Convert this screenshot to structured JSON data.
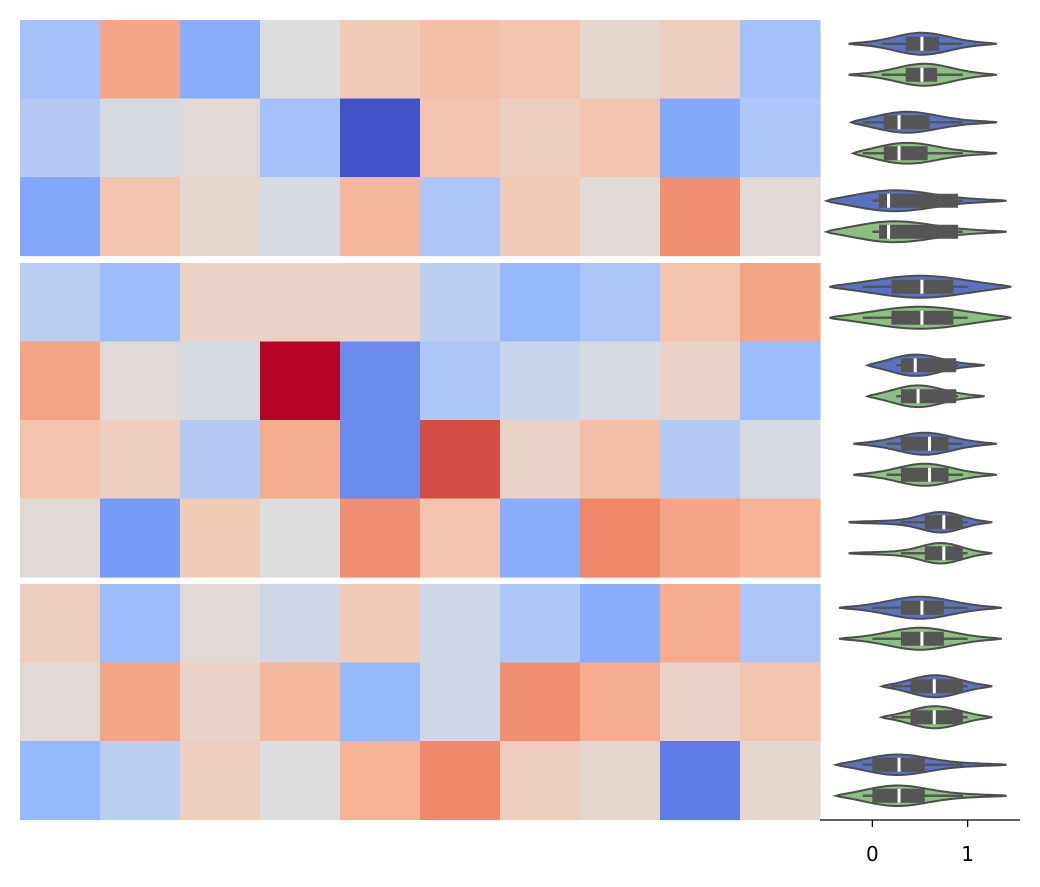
{
  "chart_data": [
    {
      "type": "heatmap",
      "title": "",
      "xlabel": "",
      "ylabel": "",
      "colormap": "coolwarm",
      "value_range": [
        -2.5,
        2.5
      ],
      "row_groups": [
        3,
        4,
        3
      ],
      "columns": 10,
      "values": [
        [
          -0.8,
          1.1,
          -1.2,
          0.0,
          0.5,
          0.7,
          0.6,
          0.2,
          0.4,
          -0.8
        ],
        [
          -0.6,
          -0.1,
          0.1,
          -0.8,
          -2.4,
          0.6,
          0.4,
          0.6,
          -1.3,
          -0.7
        ],
        [
          -1.3,
          0.6,
          0.2,
          -0.1,
          0.8,
          -0.7,
          0.5,
          0.1,
          1.4,
          0.1
        ],
        [
          -0.5,
          -0.9,
          0.3,
          0.3,
          0.3,
          -0.5,
          -1.0,
          -0.7,
          0.6,
          1.1
        ],
        [
          1.1,
          0.1,
          -0.1,
          2.5,
          -1.7,
          -0.7,
          -0.3,
          -0.1,
          0.3,
          -0.9
        ],
        [
          0.6,
          0.4,
          -0.6,
          1.0,
          -1.7,
          2.1,
          0.3,
          0.7,
          -0.6,
          -0.1
        ],
        [
          0.1,
          -1.5,
          0.5,
          0.0,
          1.4,
          0.6,
          -1.2,
          1.5,
          1.1,
          0.9
        ],
        [
          0.4,
          -0.9,
          0.1,
          -0.2,
          0.5,
          -0.2,
          -0.7,
          -1.2,
          1.0,
          -0.7
        ],
        [
          0.1,
          1.1,
          0.3,
          0.8,
          -1.0,
          -0.2,
          1.4,
          1.0,
          0.3,
          0.6
        ],
        [
          -1.0,
          -0.5,
          0.4,
          0.0,
          0.9,
          1.5,
          0.4,
          0.2,
          -1.9,
          0.2
        ]
      ]
    },
    {
      "type": "violin",
      "title": "",
      "xlabel": "",
      "ylabel": "",
      "orientation": "horizontal",
      "xlim": [
        -0.55,
        1.55
      ],
      "x_ticks": [
        0,
        1
      ],
      "x_tick_labels": [
        "0",
        "1"
      ],
      "series_colors": [
        "#5a72bf",
        "#8cc080"
      ],
      "box_color": "#555555",
      "rows": [
        {
          "pairs": [
            {
              "median": 0.52,
              "q1": 0.35,
              "q3": 0.7,
              "wmin": 0.1,
              "wmax": 0.95,
              "min": -0.25,
              "max": 1.3,
              "peak": 0.52,
              "spread": 0.3
            },
            {
              "median": 0.52,
              "q1": 0.35,
              "q3": 0.68,
              "wmin": 0.1,
              "wmax": 0.95,
              "min": -0.25,
              "max": 1.3,
              "peak": 0.55,
              "spread": 0.3
            }
          ]
        },
        {
          "pairs": [
            {
              "median": 0.28,
              "q1": 0.12,
              "q3": 0.6,
              "wmin": -0.1,
              "wmax": 0.95,
              "min": -0.22,
              "max": 1.3,
              "peak": 0.3,
              "spread": 0.35
            },
            {
              "median": 0.28,
              "q1": 0.12,
              "q3": 0.58,
              "wmin": -0.1,
              "wmax": 0.95,
              "min": -0.2,
              "max": 1.3,
              "peak": 0.3,
              "spread": 0.35
            }
          ]
        },
        {
          "pairs": [
            {
              "median": 0.17,
              "q1": 0.07,
              "q3": 0.9,
              "wmin": 0.0,
              "wmax": 0.95,
              "min": -0.48,
              "max": 1.4,
              "peak": 0.15,
              "spread": 0.45
            },
            {
              "median": 0.17,
              "q1": 0.07,
              "q3": 0.9,
              "wmin": 0.0,
              "wmax": 0.95,
              "min": -0.48,
              "max": 1.4,
              "peak": 0.15,
              "spread": 0.45
            }
          ]
        },
        {
          "pairs": [
            {
              "median": 0.52,
              "q1": 0.2,
              "q3": 0.85,
              "wmin": -0.1,
              "wmax": 1.0,
              "min": -0.45,
              "max": 1.45,
              "peak": 0.5,
              "spread": 0.55
            },
            {
              "median": 0.52,
              "q1": 0.2,
              "q3": 0.85,
              "wmin": -0.1,
              "wmax": 1.0,
              "min": -0.45,
              "max": 1.45,
              "peak": 0.5,
              "spread": 0.55
            }
          ]
        },
        {
          "pairs": [
            {
              "median": 0.45,
              "q1": 0.3,
              "q3": 0.88,
              "wmin": 0.25,
              "wmax": 0.9,
              "min": -0.05,
              "max": 1.17,
              "peak": 0.42,
              "spread": 0.28
            },
            {
              "median": 0.48,
              "q1": 0.3,
              "q3": 0.88,
              "wmin": 0.25,
              "wmax": 0.9,
              "min": -0.05,
              "max": 1.17,
              "peak": 0.45,
              "spread": 0.28
            }
          ]
        },
        {
          "pairs": [
            {
              "median": 0.6,
              "q1": 0.3,
              "q3": 0.8,
              "wmin": 0.15,
              "wmax": 0.95,
              "min": -0.2,
              "max": 1.3,
              "peak": 0.55,
              "spread": 0.3
            },
            {
              "median": 0.6,
              "q1": 0.3,
              "q3": 0.8,
              "wmin": 0.15,
              "wmax": 0.95,
              "min": -0.2,
              "max": 1.3,
              "peak": 0.55,
              "spread": 0.3
            }
          ]
        },
        {
          "pairs": [
            {
              "median": 0.75,
              "q1": 0.55,
              "q3": 0.95,
              "wmin": 0.3,
              "wmax": 1.0,
              "min": -0.25,
              "max": 1.25,
              "peak": 0.75,
              "spread": 0.22
            },
            {
              "median": 0.75,
              "q1": 0.55,
              "q3": 0.95,
              "wmin": 0.3,
              "wmax": 1.0,
              "min": -0.25,
              "max": 1.25,
              "peak": 0.75,
              "spread": 0.22
            }
          ]
        },
        {
          "pairs": [
            {
              "median": 0.52,
              "q1": 0.3,
              "q3": 0.75,
              "wmin": 0.0,
              "wmax": 1.0,
              "min": -0.35,
              "max": 1.35,
              "peak": 0.5,
              "spread": 0.35
            },
            {
              "median": 0.52,
              "q1": 0.3,
              "q3": 0.75,
              "wmin": 0.0,
              "wmax": 1.0,
              "min": -0.35,
              "max": 1.35,
              "peak": 0.5,
              "spread": 0.35
            }
          ]
        },
        {
          "pairs": [
            {
              "median": 0.65,
              "q1": 0.4,
              "q3": 0.95,
              "wmin": 0.2,
              "wmax": 1.0,
              "min": 0.1,
              "max": 1.25,
              "peak": 0.65,
              "spread": 0.28
            },
            {
              "median": 0.65,
              "q1": 0.4,
              "q3": 0.95,
              "wmin": 0.2,
              "wmax": 1.0,
              "min": 0.1,
              "max": 1.25,
              "peak": 0.65,
              "spread": 0.28
            }
          ]
        },
        {
          "pairs": [
            {
              "median": 0.28,
              "q1": 0.0,
              "q3": 0.55,
              "wmin": -0.1,
              "wmax": 0.95,
              "min": -0.38,
              "max": 1.4,
              "peak": 0.2,
              "spread": 0.35
            },
            {
              "median": 0.28,
              "q1": 0.0,
              "q3": 0.55,
              "wmin": -0.1,
              "wmax": 0.95,
              "min": -0.38,
              "max": 1.4,
              "peak": 0.2,
              "spread": 0.35
            }
          ]
        }
      ]
    }
  ]
}
